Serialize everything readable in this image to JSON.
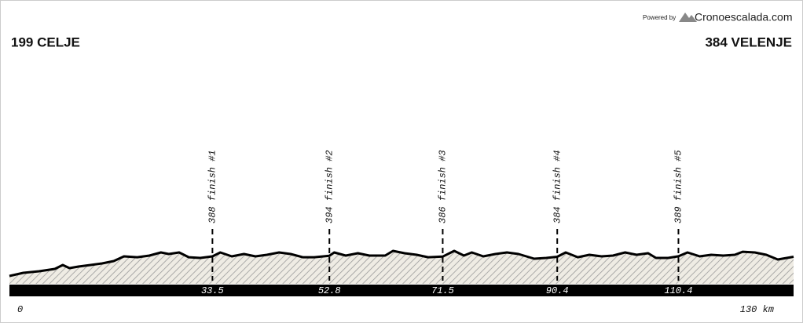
{
  "header": {
    "powered_by": "Powered by",
    "brand": "Cronoescalada.com"
  },
  "chart_data": {
    "type": "area",
    "start_label": "199 CELJE",
    "end_label": "384 VELENJE",
    "profile": {
      "km": [
        0,
        2.3,
        4.9,
        7.5,
        8.8,
        9.9,
        11.4,
        13.4,
        15.3,
        17.2,
        18.9,
        21.1,
        23.1,
        25.0,
        26.3,
        28.0,
        29.6,
        31.5,
        33.5,
        34.8,
        36.7,
        38.7,
        40.6,
        42.5,
        44.5,
        46.4,
        48.4,
        50.3,
        52.8,
        53.6,
        55.5,
        57.5,
        59.4,
        62.0,
        63.3,
        65.2,
        67.2,
        69.1,
        71.5,
        73.4,
        75.0,
        76.3,
        78.2,
        80.2,
        82.1,
        84.0,
        86.6,
        88.6,
        90.4,
        91.8,
        93.8,
        95.7,
        97.7,
        99.6,
        101.6,
        103.5,
        105.4,
        106.7,
        108.7,
        110.4,
        111.9,
        113.9,
        115.8,
        117.8,
        119.7,
        121.0,
        123.0,
        124.9,
        126.8,
        129.4
      ],
      "elevation": [
        199,
        229,
        244,
        267,
        305,
        275,
        290,
        305,
        320,
        343,
        388,
        380,
        396,
        426,
        411,
        426,
        380,
        373,
        388,
        426,
        388,
        411,
        388,
        403,
        426,
        411,
        380,
        380,
        394,
        426,
        396,
        418,
        396,
        396,
        441,
        418,
        403,
        380,
        386,
        441,
        396,
        426,
        388,
        411,
        426,
        411,
        365,
        373,
        384,
        426,
        380,
        403,
        388,
        396,
        426,
        403,
        418,
        373,
        373,
        389,
        426,
        388,
        403,
        396,
        403,
        433,
        426,
        403,
        358,
        384
      ]
    },
    "finishes": [
      {
        "label": "388 finish #1",
        "km": 33.5
      },
      {
        "label": "394 finish #2",
        "km": 52.8
      },
      {
        "label": "386 finish #3",
        "km": 71.5
      },
      {
        "label": "384 finish #4",
        "km": 90.4
      },
      {
        "label": "389 finish #5",
        "km": 110.4
      }
    ],
    "x_labels": [
      0,
      {
        "value": 130,
        "label": "130 km"
      }
    ]
  }
}
